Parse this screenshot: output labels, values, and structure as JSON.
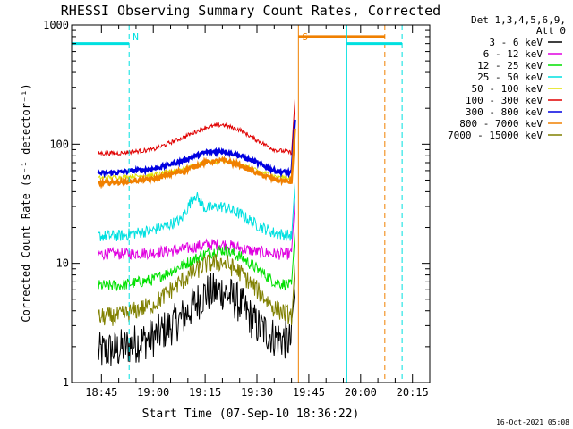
{
  "chart_data": {
    "type": "line",
    "title": "RHESSI Observing Summary Count Rates, Corrected",
    "xlabel": "Start Time (07-Sep-10 18:36:22)",
    "ylabel": "Corrected Count Rate (s⁻¹ detector⁻¹)",
    "y_scale": "log",
    "ylim": [
      1,
      1000
    ],
    "xlim": [
      "18:36:22",
      "20:20:00"
    ],
    "x_ticks": [
      "18:45",
      "19:00",
      "19:15",
      "19:30",
      "19:45",
      "20:00",
      "20:15"
    ],
    "y_ticks": [
      "1",
      "10",
      "100",
      "1000"
    ],
    "detector_note": [
      "Det 1,3,4,5,6,9,",
      "Att 0"
    ],
    "timestamp": "16-Oct-2021 05:08",
    "legend_position": "top-right",
    "series": [
      {
        "name": "3 - 6 keV",
        "color": "#000000",
        "points": [
          [
            "18:44",
            1.8
          ],
          [
            "18:50",
            1.9
          ],
          [
            "19:00",
            2.4
          ],
          [
            "19:08",
            3.4
          ],
          [
            "19:15",
            5.6
          ],
          [
            "19:20",
            5.9
          ],
          [
            "19:25",
            4.6
          ],
          [
            "19:30",
            3.0
          ],
          [
            "19:35",
            2.4
          ],
          [
            "19:40",
            2.2
          ]
        ]
      },
      {
        "name": "6 - 12 keV",
        "color": "#e000e0",
        "points": [
          [
            "18:44",
            12
          ],
          [
            "18:50",
            12
          ],
          [
            "19:00",
            12.3
          ],
          [
            "19:08",
            13
          ],
          [
            "19:15",
            14.3
          ],
          [
            "19:20",
            14.5
          ],
          [
            "19:25",
            13.5
          ],
          [
            "19:30",
            12.5
          ],
          [
            "19:35",
            12
          ],
          [
            "19:40",
            12
          ]
        ]
      },
      {
        "name": "12 - 25 keV",
        "color": "#00e000",
        "points": [
          [
            "18:44",
            6.5
          ],
          [
            "18:50",
            6.5
          ],
          [
            "19:00",
            7.3
          ],
          [
            "19:08",
            9.5
          ],
          [
            "19:15",
            12
          ],
          [
            "19:20",
            13
          ],
          [
            "19:25",
            11.5
          ],
          [
            "19:30",
            9
          ],
          [
            "19:35",
            7
          ],
          [
            "19:40",
            6.5
          ]
        ]
      },
      {
        "name": "25 - 50 keV",
        "color": "#00e0e0",
        "points": [
          [
            "18:44",
            17
          ],
          [
            "18:50",
            17
          ],
          [
            "19:00",
            19
          ],
          [
            "19:08",
            23
          ],
          [
            "19:12",
            38
          ],
          [
            "19:15",
            29
          ],
          [
            "19:20",
            30
          ],
          [
            "19:25",
            26
          ],
          [
            "19:30",
            21
          ],
          [
            "19:35",
            18
          ],
          [
            "19:40",
            17
          ]
        ]
      },
      {
        "name": "50 - 100 keV",
        "color": "#e0e000",
        "points": [
          [
            "18:44",
            52
          ],
          [
            "18:50",
            53
          ],
          [
            "19:00",
            55
          ],
          [
            "19:08",
            62
          ],
          [
            "19:15",
            70
          ],
          [
            "19:20",
            73
          ],
          [
            "19:25",
            68
          ],
          [
            "19:30",
            60
          ],
          [
            "19:35",
            54
          ],
          [
            "19:40",
            52
          ]
        ]
      },
      {
        "name": "100 - 300 keV",
        "color": "#e00000",
        "points": [
          [
            "18:44",
            84
          ],
          [
            "18:50",
            84
          ],
          [
            "19:00",
            90
          ],
          [
            "19:08",
            112
          ],
          [
            "19:15",
            138
          ],
          [
            "19:20",
            146
          ],
          [
            "19:25",
            132
          ],
          [
            "19:30",
            108
          ],
          [
            "19:35",
            90
          ],
          [
            "19:40",
            85
          ]
        ]
      },
      {
        "name": "300 - 800 keV",
        "color": "#0000e0",
        "points": [
          [
            "18:44",
            57
          ],
          [
            "18:50",
            58
          ],
          [
            "19:00",
            62
          ],
          [
            "19:08",
            72
          ],
          [
            "19:15",
            85
          ],
          [
            "19:20",
            88
          ],
          [
            "19:25",
            80
          ],
          [
            "19:30",
            70
          ],
          [
            "19:35",
            60
          ],
          [
            "19:40",
            57
          ]
        ]
      },
      {
        "name": "800 - 7000 keV",
        "color": "#f08000",
        "points": [
          [
            "18:44",
            47
          ],
          [
            "18:50",
            48
          ],
          [
            "19:00",
            51
          ],
          [
            "19:08",
            59
          ],
          [
            "19:15",
            70
          ],
          [
            "19:20",
            73
          ],
          [
            "19:25",
            67
          ],
          [
            "19:30",
            57
          ],
          [
            "19:35",
            51
          ],
          [
            "19:40",
            48
          ]
        ]
      },
      {
        "name": "7000 - 15000 keV",
        "color": "#808000",
        "points": [
          [
            "18:44",
            3.5
          ],
          [
            "18:50",
            3.6
          ],
          [
            "19:00",
            4.5
          ],
          [
            "19:08",
            7
          ],
          [
            "19:15",
            9.8
          ],
          [
            "19:20",
            10.3
          ],
          [
            "19:25",
            8.5
          ],
          [
            "19:30",
            6
          ],
          [
            "19:35",
            4.2
          ],
          [
            "19:40",
            3.6
          ]
        ]
      }
    ],
    "annotations": [
      {
        "text": "N",
        "color": "#00e0e0",
        "time": "18:53"
      },
      {
        "text": "S",
        "color": "#f08000",
        "time": "19:42"
      }
    ],
    "markers": [
      {
        "kind": "night",
        "color": "#00e0e0",
        "bar_start": "18:36:22",
        "bar_end": "18:53",
        "bar_level": 700,
        "dashed_at": "18:53"
      },
      {
        "kind": "saa",
        "color": "#f08000",
        "bar_start": "19:42",
        "bar_end": "20:07",
        "bar_level": 800,
        "solid_at": "19:42",
        "dashed_at": "20:07"
      },
      {
        "kind": "night",
        "color": "#00e0e0",
        "bar_start": "19:56",
        "bar_end": "20:12",
        "bar_level": 700,
        "solid_at": "19:56",
        "dashed_at": "20:12"
      }
    ]
  }
}
